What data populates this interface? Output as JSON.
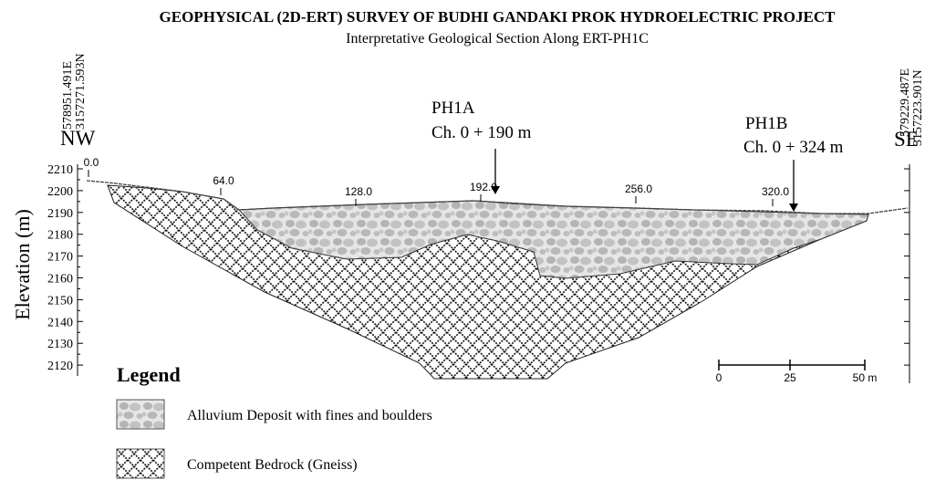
{
  "header": {
    "title": "GEOPHYSICAL (2D-ERT) SURVEY OF BUDHI GANDAKI PROK HYDROELECTRIC PROJECT",
    "subtitle": "Interpretative Geological Section Along ERT-PH1C"
  },
  "section": {
    "left_end": {
      "easting": "578951.491E",
      "northing": "3157271.593N",
      "direction": "NW"
    },
    "right_end": {
      "easting": "579229.487E",
      "northing": "3157223.901N",
      "direction": "SE"
    },
    "y_axis": {
      "label": "Elevation (m)",
      "ticks": [
        "2210",
        "2200",
        "2190",
        "2180",
        "2170",
        "2160",
        "2150",
        "2140",
        "2130",
        "2120"
      ]
    },
    "chainage_ticks": [
      "0.0",
      "64.0",
      "128.0",
      "192.0",
      "256.0",
      "320.0"
    ],
    "markers": [
      {
        "name": "PH1A",
        "chainage": "Ch. 0 + 190 m"
      },
      {
        "name": "PH1B",
        "chainage": "Ch. 0 + 324 m"
      }
    ],
    "scale_bar": {
      "ticks": [
        "0",
        "25",
        "50 m"
      ]
    }
  },
  "legend": {
    "title": "Legend",
    "items": [
      {
        "label": "Alluvium Deposit with fines and boulders"
      },
      {
        "label": "Competent Bedrock (Gneiss)"
      }
    ]
  }
}
